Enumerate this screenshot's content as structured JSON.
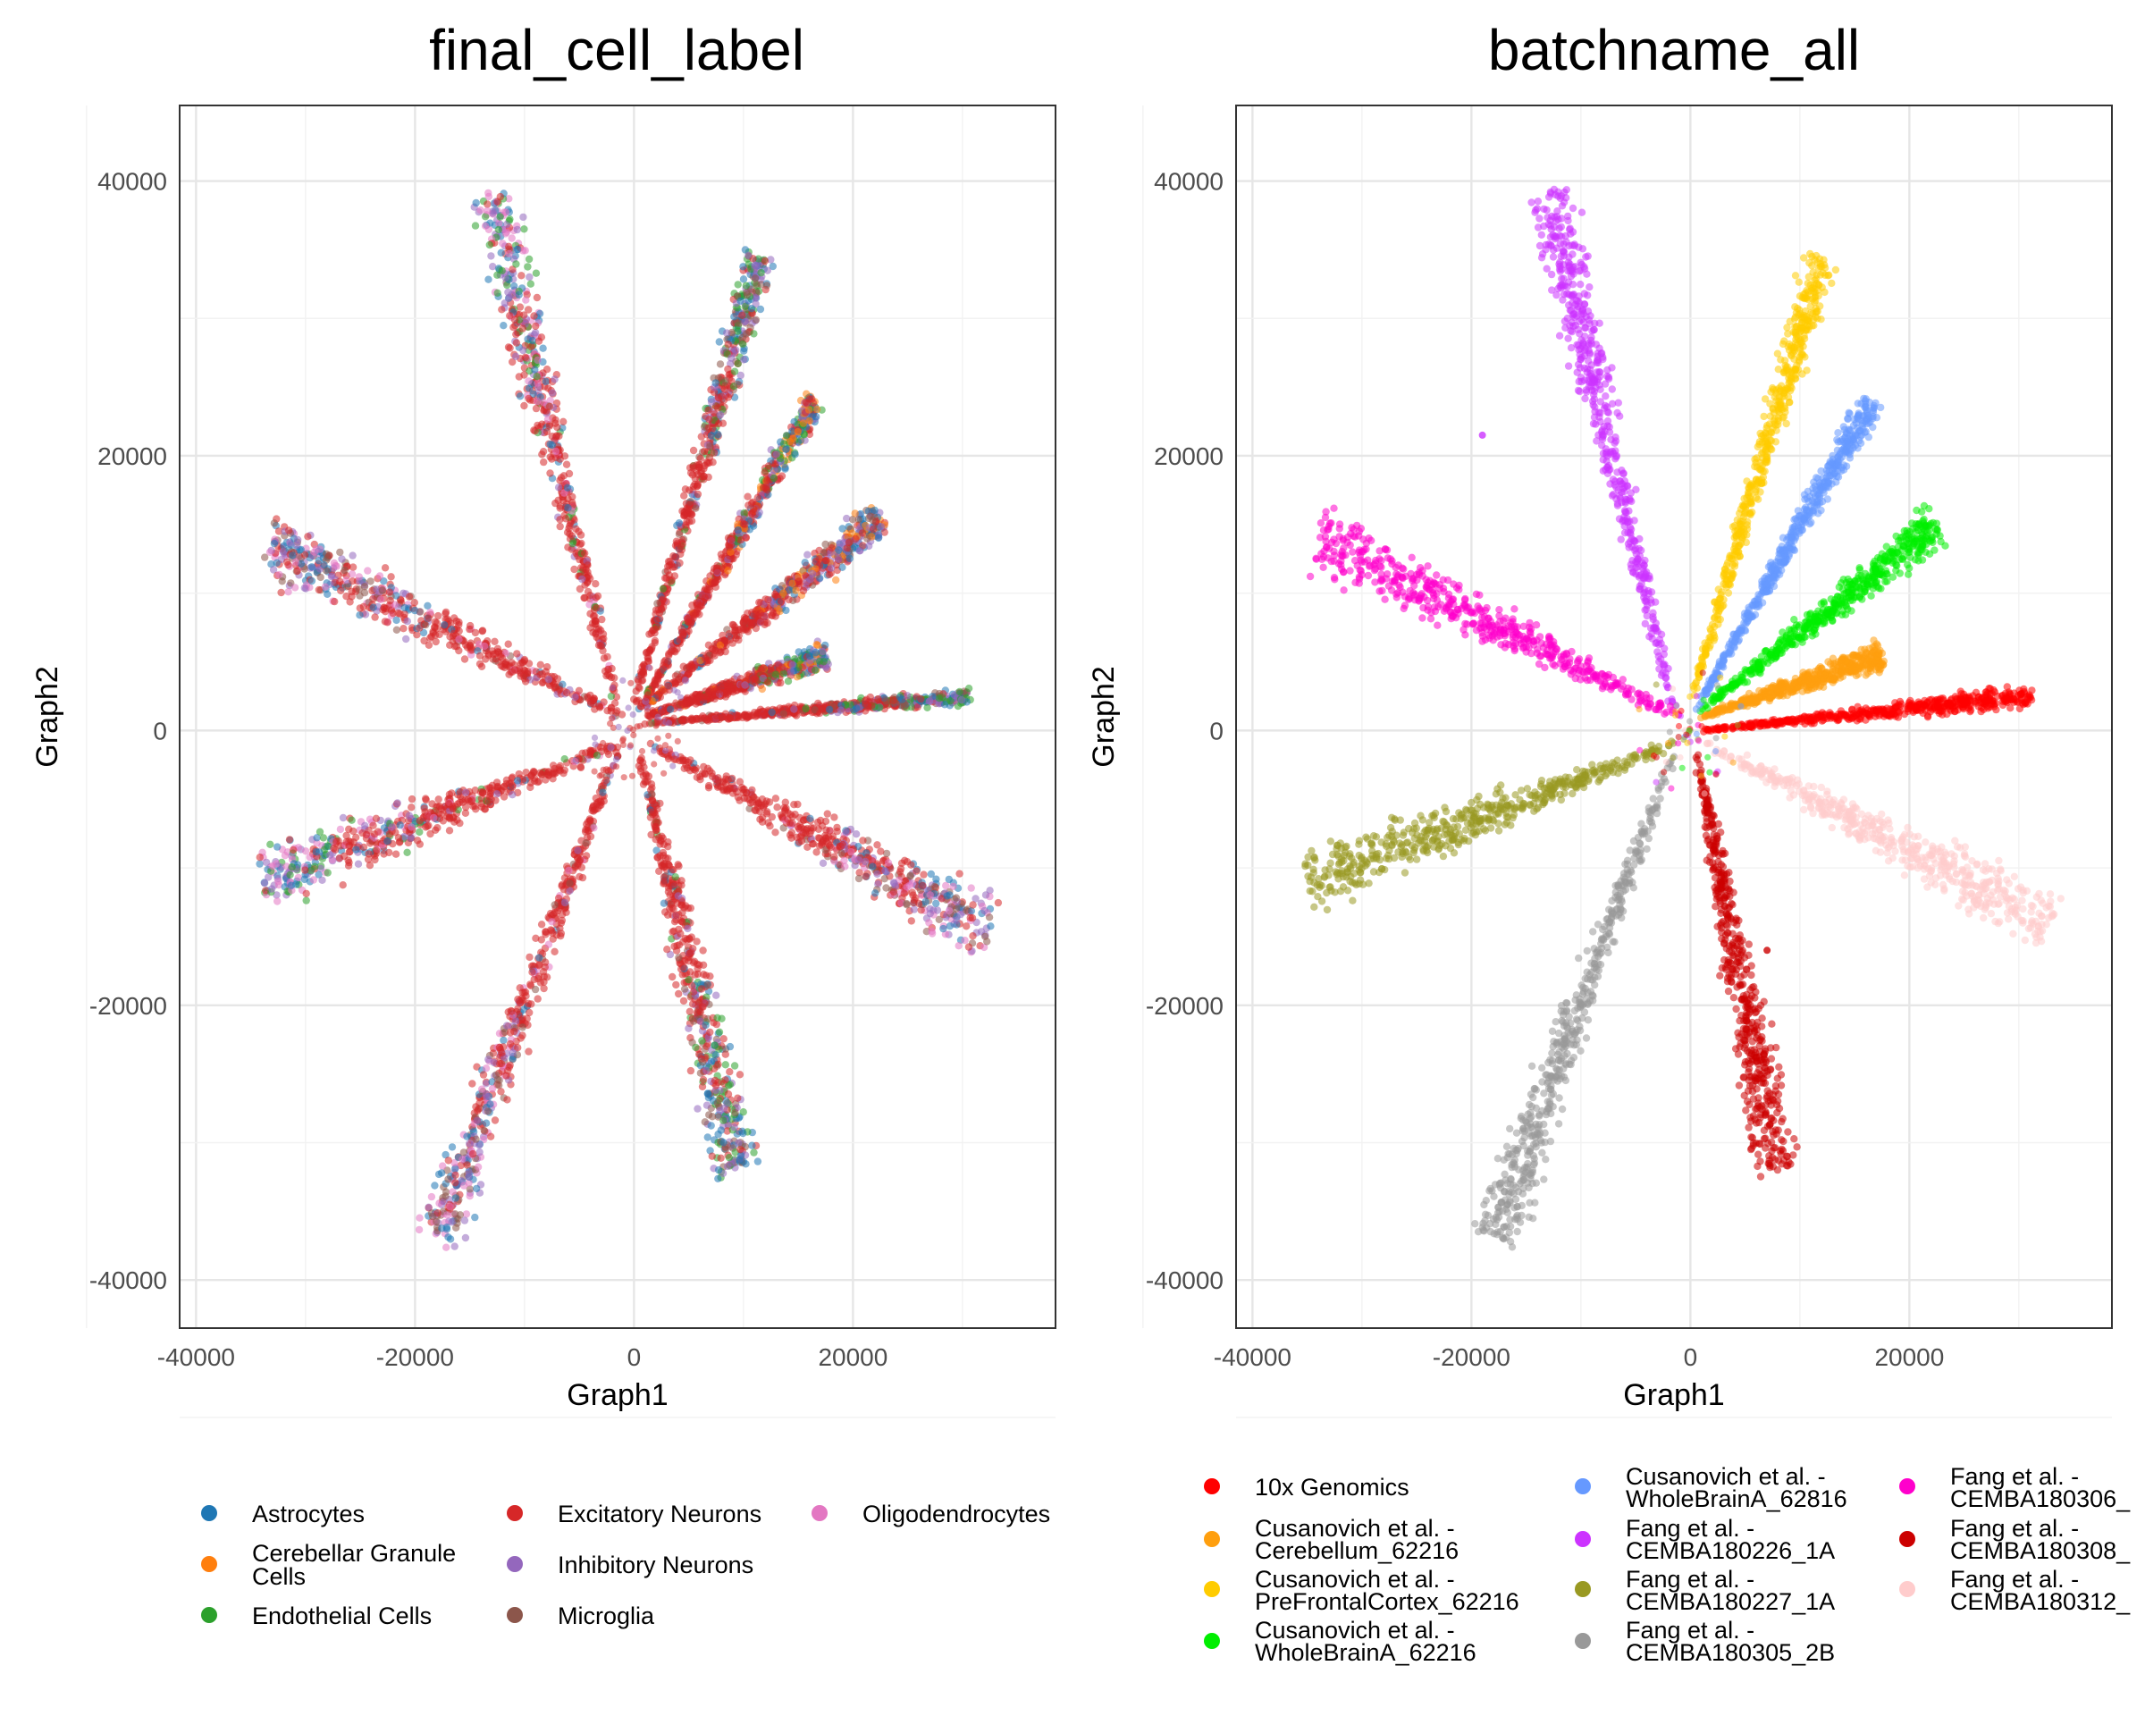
{
  "chart_data": [
    {
      "type": "scatter",
      "title": "final_cell_label",
      "xlabel": "Graph1",
      "ylabel": "Graph2",
      "xlim": [
        -41500,
        38500
      ],
      "ylim": [
        -43500,
        45500
      ],
      "xticks": [
        -40000,
        -20000,
        0,
        20000
      ],
      "yticks": [
        -40000,
        -20000,
        0,
        20000,
        40000
      ],
      "xtick_labels": [
        "-40000",
        "-20000",
        "0",
        "20000"
      ],
      "ytick_labels": [
        "-40000",
        "-20000",
        "0",
        "20000",
        "40000"
      ],
      "grid": true,
      "legend_position": "bottom",
      "legend": [
        {
          "name": "Astrocytes",
          "color": "#1f77b4"
        },
        {
          "name": "Cerebellar Granule Cells",
          "color": "#ff7f0e"
        },
        {
          "name": "Endothelial Cells",
          "color": "#2ca02c"
        },
        {
          "name": "Excitatory Neurons",
          "color": "#d62728"
        },
        {
          "name": "Inhibitory Neurons",
          "color": "#9467bd"
        },
        {
          "name": "Microglia",
          "color": "#8c564b"
        },
        {
          "name": "Oligodendrocytes",
          "color": "#e377c2"
        }
      ],
      "arms": [
        {
          "x0": -1500,
          "y0": 1500,
          "x1": -13000,
          "y1": 39000,
          "w_tip": 3200,
          "tail": "#d62728",
          "tip": [
            "#9467bd",
            "#1f77b4",
            "#2ca02c",
            "#e377c2"
          ]
        },
        {
          "x0": -1000,
          "y0": 1000,
          "x1": -33500,
          "y1": 13500,
          "w_tip": 3600,
          "tail": "#d62728",
          "tip": [
            "#9467bd",
            "#1f77b4",
            "#8c564b",
            "#e377c2"
          ]
        },
        {
          "x0": -1500,
          "y0": -1000,
          "x1": -34000,
          "y1": -11000,
          "w_tip": 3400,
          "tail": "#d62728",
          "tip": [
            "#9467bd",
            "#2ca02c",
            "#1f77b4",
            "#e377c2"
          ]
        },
        {
          "x0": -1500,
          "y0": -1500,
          "x1": -18000,
          "y1": -37000,
          "w_tip": 3000,
          "tail": "#d62728",
          "tip": [
            "#9467bd",
            "#1f77b4",
            "#8c564b",
            "#e377c2"
          ]
        },
        {
          "x0": 500,
          "y0": -1500,
          "x1": 9500,
          "y1": -32000,
          "w_tip": 3400,
          "tail": "#d62728",
          "tip": [
            "#9467bd",
            "#1f77b4",
            "#2ca02c",
            "#8c564b"
          ]
        },
        {
          "x0": 1500,
          "y0": -1000,
          "x1": 32500,
          "y1": -14500,
          "w_tip": 3600,
          "tail": "#d62728",
          "tip": [
            "#9467bd",
            "#1f77b4",
            "#8c564b",
            "#e377c2"
          ]
        },
        {
          "x0": 1000,
          "y0": 500,
          "x1": 30500,
          "y1": 2500,
          "w_tip": 900,
          "tail": "#d62728",
          "tip": [
            "#1f77b4",
            "#8c564b",
            "#2ca02c",
            "#9467bd"
          ]
        },
        {
          "x0": 1000,
          "y0": 1000,
          "x1": 17500,
          "y1": 5500,
          "w_tip": 1500,
          "tail": "#d62728",
          "tip": [
            "#ff7f0e",
            "#1f77b4",
            "#9467bd",
            "#2ca02c"
          ]
        },
        {
          "x0": 500,
          "y0": 1500,
          "x1": 22500,
          "y1": 15500,
          "w_tip": 2200,
          "tail": "#d62728",
          "tip": [
            "#ff7f0e",
            "#1f77b4",
            "#8c564b",
            "#9467bd"
          ]
        },
        {
          "x0": 500,
          "y0": 1500,
          "x1": 16500,
          "y1": 24000,
          "w_tip": 1600,
          "tail": "#d62728",
          "tip": [
            "#ff7f0e",
            "#1f77b4",
            "#9467bd",
            "#2ca02c"
          ]
        },
        {
          "x0": 0,
          "y0": 2000,
          "x1": 11500,
          "y1": 34500,
          "w_tip": 2200,
          "tail": "#d62728",
          "tip": [
            "#9467bd",
            "#1f77b4",
            "#2ca02c",
            "#8c564b"
          ]
        }
      ]
    },
    {
      "type": "scatter",
      "title": "batchname_all",
      "xlabel": "Graph1",
      "ylabel": "Graph2",
      "xlim": [
        -41500,
        38500
      ],
      "ylim": [
        -43500,
        45500
      ],
      "xticks": [
        -40000,
        -20000,
        0,
        20000
      ],
      "yticks": [
        -40000,
        -20000,
        0,
        20000,
        40000
      ],
      "xtick_labels": [
        "-40000",
        "-20000",
        "0",
        "20000"
      ],
      "ytick_labels": [
        "-40000",
        "-20000",
        "0",
        "20000",
        "40000"
      ],
      "grid": true,
      "legend_position": "bottom",
      "legend": [
        {
          "line1": "10x Genomics",
          "line2": "",
          "color": "#ff0000"
        },
        {
          "line1": "Cusanovich et al. -",
          "line2": "Cerebellum_62216",
          "color": "#ff9f0e"
        },
        {
          "line1": "Cusanovich et al. -",
          "line2": "PreFrontalCortex_62216",
          "color": "#ffcc00"
        },
        {
          "line1": "Cusanovich et al. -",
          "line2": "WholeBrainA_62216",
          "color": "#00ee00"
        },
        {
          "line1": "Cusanovich et al. -",
          "line2": "WholeBrainA_62816",
          "color": "#6699ff"
        },
        {
          "line1": "Fang et al. -",
          "line2": "CEMBA180226_1A",
          "color": "#cc33ff"
        },
        {
          "line1": "Fang et al. -",
          "line2": "CEMBA180227_1A",
          "color": "#999922"
        },
        {
          "line1": "Fang et al. -",
          "line2": "CEMBA180305_2B",
          "color": "#999999"
        },
        {
          "line1": "Fang et al. -",
          "line2": "CEMBA180306_",
          "color": "#ff00cc"
        },
        {
          "line1": "Fang et al. -",
          "line2": "CEMBA180308_",
          "color": "#cc0000"
        },
        {
          "line1": "Fang et al. -",
          "line2": "CEMBA180312_",
          "color": "#ffcccc"
        }
      ],
      "arms": [
        {
          "x0": -1500,
          "y0": 1500,
          "x1": -13000,
          "y1": 39000,
          "w_tip": 3200,
          "color": "#cc33ff"
        },
        {
          "x0": -1000,
          "y0": 1000,
          "x1": -34000,
          "y1": 14000,
          "w_tip": 3600,
          "color": "#ff00cc"
        },
        {
          "x0": -1500,
          "y0": -1000,
          "x1": -35000,
          "y1": -11000,
          "w_tip": 3400,
          "color": "#999922"
        },
        {
          "x0": -1500,
          "y0": -1500,
          "x1": -18000,
          "y1": -37000,
          "w_tip": 3200,
          "color": "#999999"
        },
        {
          "x0": 500,
          "y0": -1500,
          "x1": 8000,
          "y1": -32000,
          "w_tip": 3400,
          "color": "#cc0000"
        },
        {
          "x0": 1500,
          "y0": -1000,
          "x1": 33000,
          "y1": -14000,
          "w_tip": 3600,
          "color": "#ffcccc"
        },
        {
          "x0": 1000,
          "y0": 0,
          "x1": 31000,
          "y1": 2500,
          "w_tip": 1200,
          "color": "#ff0000"
        },
        {
          "x0": 1000,
          "y0": 1000,
          "x1": 17500,
          "y1": 5500,
          "w_tip": 1600,
          "color": "#ff9f0e"
        },
        {
          "x0": 1000,
          "y0": 1500,
          "x1": 22500,
          "y1": 15000,
          "w_tip": 2400,
          "color": "#00ee00"
        },
        {
          "x0": 500,
          "y0": 1500,
          "x1": 16500,
          "y1": 24000,
          "w_tip": 1700,
          "color": "#6699ff"
        },
        {
          "x0": 0,
          "y0": 2000,
          "x1": 12000,
          "y1": 34500,
          "w_tip": 2200,
          "color": "#ffcc00"
        }
      ],
      "outliers": [
        {
          "x": -19000,
          "y": 21500,
          "color": "#cc33ff"
        },
        {
          "x": 7000,
          "y": -16000,
          "color": "#cc0000"
        }
      ]
    }
  ]
}
